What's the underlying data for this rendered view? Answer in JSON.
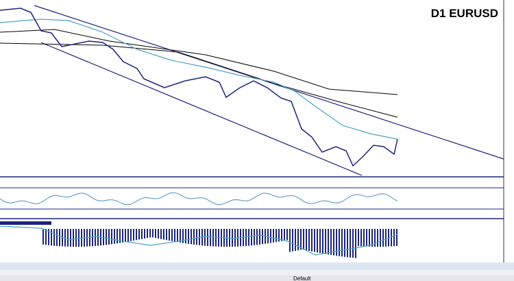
{
  "header": {
    "title": "D1 EURUSD"
  },
  "status": {
    "profile": "Default"
  }
}
